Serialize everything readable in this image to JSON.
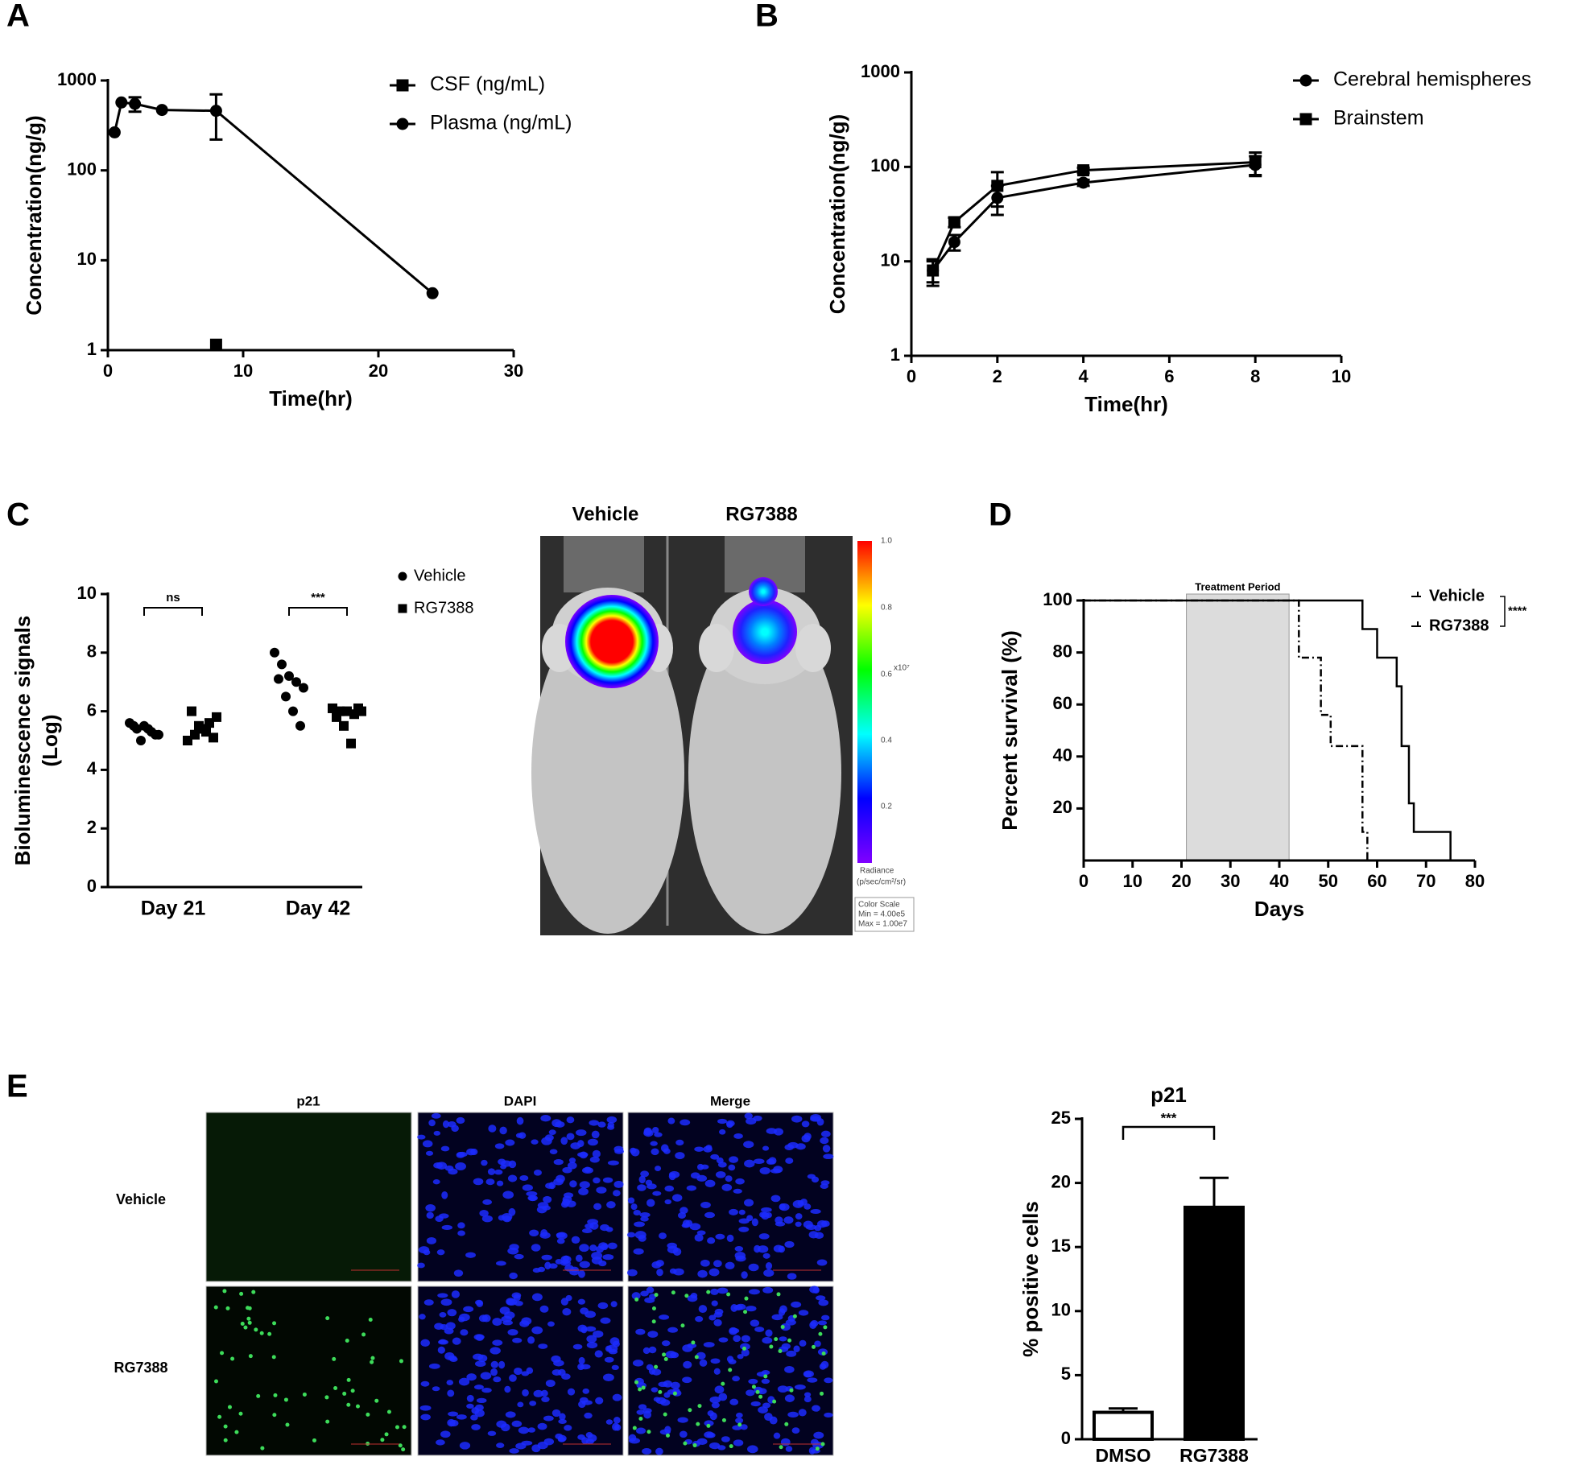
{
  "panel_labels": [
    "A",
    "B",
    "C",
    "D",
    "E"
  ],
  "imaging": {
    "columns": [
      "Vehicle",
      "RG7388"
    ],
    "colorbar_ticks": [
      "1.0",
      "0.8",
      "0.6",
      "0.4",
      "0.2"
    ],
    "colorbar_unit": "x10⁷",
    "colorbar_title": [
      "Radiance",
      "(p/sec/cm²/sr)"
    ],
    "color_scale": [
      "Color Scale",
      "Min = 4.00e5",
      "Max = 1.00e7"
    ]
  },
  "microscopy": {
    "columns": [
      "p21",
      "DAPI",
      "Merge"
    ],
    "rows": [
      "Vehicle",
      "RG7388"
    ]
  },
  "chart_data": [
    {
      "type": "line",
      "x_label": "Time(hr)",
      "y_label": "Concentration(ng/g)",
      "log_y": true,
      "xlim": [
        0,
        30
      ],
      "xticks": [
        0,
        10,
        20,
        30
      ],
      "ylim": [
        1,
        1000
      ],
      "yticks": [
        1,
        10,
        100,
        1000
      ],
      "series": [
        {
          "name": "CSF (ng/mL)",
          "color": "#000000",
          "marker": "square",
          "x": [
            8
          ],
          "values": [
            1.15
          ]
        },
        {
          "name": "Plasma (ng/mL)",
          "color": "#000000",
          "marker": "circle",
          "x": [
            0.5,
            1,
            2,
            4,
            8,
            24
          ],
          "values": [
            265,
            570,
            550,
            470,
            460,
            4.3
          ],
          "errors": [
            null,
            null,
            100,
            null,
            240,
            null
          ]
        }
      ]
    },
    {
      "type": "line",
      "x_label": "Time(hr)",
      "y_label": "Concentration(ng/g)",
      "log_y": true,
      "xlim": [
        0,
        10
      ],
      "xticks": [
        0,
        2,
        4,
        6,
        8,
        10
      ],
      "ylim": [
        1,
        1000
      ],
      "yticks": [
        1,
        10,
        100,
        1000
      ],
      "series": [
        {
          "name": "Cerebral hemispheres",
          "color": "#000000",
          "marker": "circle",
          "x": [
            0.5,
            1,
            2,
            4,
            8
          ],
          "values": [
            8,
            16,
            47,
            68,
            105
          ],
          "errors": [
            2.5,
            3,
            16,
            5,
            25
          ]
        },
        {
          "name": "Brainstem",
          "color": "#000000",
          "marker": "square",
          "x": [
            0.5,
            1,
            2,
            4,
            8
          ],
          "values": [
            8,
            26,
            63,
            92,
            112
          ],
          "errors": [
            2,
            3,
            25,
            6,
            30
          ]
        }
      ]
    },
    {
      "type": "strip",
      "y_label": [
        "Bioluminescence signals",
        "(Log)"
      ],
      "categories": [
        "Day 21",
        "Day 42"
      ],
      "ylim": [
        0,
        10
      ],
      "yticks": [
        0,
        2,
        4,
        6,
        8,
        10
      ],
      "annotations": [
        "ns",
        "***"
      ],
      "series": [
        {
          "name": "Vehicle",
          "color": "#000000",
          "marker": "circle",
          "values": [
            [
              5.6,
              5.4,
              5.5,
              5.3,
              5.2,
              5.5,
              5.0,
              5.4,
              5.2
            ],
            [
              8.0,
              7.6,
              7.2,
              7.0,
              6.8,
              7.1,
              6.5,
              6.0,
              5.5
            ]
          ]
        },
        {
          "name": "RG7388",
          "color": "#000000",
          "marker": "square",
          "values": [
            [
              5.0,
              5.2,
              5.4,
              5.6,
              5.8,
              6.0,
              5.5,
              5.3,
              5.1
            ],
            [
              6.1,
              6.0,
              6.0,
              5.9,
              6.0,
              5.8,
              5.5,
              4.9,
              6.1
            ]
          ]
        }
      ]
    },
    {
      "type": "step",
      "x_label": "Days",
      "y_label": "Percent survival (%)",
      "xlim": [
        0,
        80
      ],
      "xticks": [
        0,
        10,
        20,
        30,
        40,
        50,
        60,
        70,
        80
      ],
      "ylim": [
        0,
        100
      ],
      "yticks": [
        20,
        40,
        60,
        80,
        100
      ],
      "shaded_span": [
        21,
        42
      ],
      "shaded_label": "Treatment Period",
      "significance": "****",
      "series": [
        {
          "name": "Vehicle",
          "color": "#000000",
          "style": "dashdot",
          "x": [
            0,
            44,
            48.5,
            50.5,
            57,
            58
          ],
          "values": [
            100,
            78,
            56,
            44,
            11,
            0
          ]
        },
        {
          "name": "RG7388",
          "color": "#000000",
          "style": "solid",
          "x": [
            0,
            57,
            60,
            64,
            65,
            66.5,
            67.5,
            75
          ],
          "values": [
            100,
            89,
            78,
            67,
            44,
            22,
            11,
            0
          ]
        }
      ]
    },
    {
      "type": "bar",
      "title": "p21",
      "y_label": "% positive cells",
      "categories": [
        "DMSO",
        "RG7388"
      ],
      "values": [
        2.1,
        18.1
      ],
      "errors": [
        0.3,
        2.3
      ],
      "colors": [
        "#ffffff",
        "#000000"
      ],
      "ylim": [
        0,
        25
      ],
      "yticks": [
        0,
        5,
        10,
        15,
        20,
        25
      ],
      "annotation": "***"
    }
  ]
}
